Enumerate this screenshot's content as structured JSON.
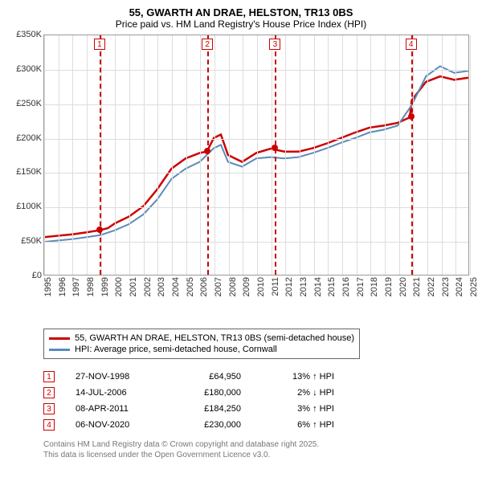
{
  "title": "55, GWARTH AN DRAE, HELSTON, TR13 0BS",
  "subtitle": "Price paid vs. HM Land Registry's House Price Index (HPI)",
  "chart": {
    "type": "line",
    "ylim": [
      0,
      350000
    ],
    "ytick_step": 50000,
    "xlim": [
      1995,
      2025
    ],
    "background_color": "#ffffff",
    "grid_color": "#dddddd",
    "border_color": "#999999",
    "y_labels": [
      "£0",
      "£50K",
      "£100K",
      "£150K",
      "£200K",
      "£250K",
      "£300K",
      "£350K"
    ],
    "x_labels": [
      "1995",
      "1996",
      "1997",
      "1998",
      "1999",
      "2000",
      "2001",
      "2002",
      "2003",
      "2004",
      "2005",
      "2006",
      "2007",
      "2008",
      "2009",
      "2010",
      "2011",
      "2012",
      "2013",
      "2014",
      "2015",
      "2016",
      "2017",
      "2018",
      "2019",
      "2020",
      "2021",
      "2022",
      "2023",
      "2024",
      "2025"
    ],
    "series": [
      {
        "name": "55, GWARTH AN DRAE, HELSTON, TR13 0BS (semi-detached house)",
        "color": "#cc0000",
        "width": 2.5,
        "points": [
          [
            1995,
            55000
          ],
          [
            1996,
            57000
          ],
          [
            1997,
            59000
          ],
          [
            1998,
            62000
          ],
          [
            1998.9,
            64950
          ],
          [
            1999.5,
            68000
          ],
          [
            2000,
            75000
          ],
          [
            2001,
            85000
          ],
          [
            2002,
            100000
          ],
          [
            2003,
            125000
          ],
          [
            2004,
            155000
          ],
          [
            2005,
            170000
          ],
          [
            2006,
            178000
          ],
          [
            2006.5,
            180000
          ],
          [
            2007,
            200000
          ],
          [
            2007.5,
            205000
          ],
          [
            2008,
            175000
          ],
          [
            2009,
            165000
          ],
          [
            2010,
            178000
          ],
          [
            2011,
            184250
          ],
          [
            2012,
            180000
          ],
          [
            2013,
            180000
          ],
          [
            2014,
            185000
          ],
          [
            2015,
            192000
          ],
          [
            2016,
            200000
          ],
          [
            2017,
            208000
          ],
          [
            2018,
            215000
          ],
          [
            2019,
            218000
          ],
          [
            2020,
            222000
          ],
          [
            2020.85,
            230000
          ],
          [
            2021,
            255000
          ],
          [
            2022,
            282000
          ],
          [
            2023,
            290000
          ],
          [
            2024,
            285000
          ],
          [
            2025,
            288000
          ]
        ]
      },
      {
        "name": "HPI: Average price, semi-detached house, Cornwall",
        "color": "#5b8bb8",
        "width": 2,
        "points": [
          [
            1995,
            48000
          ],
          [
            1996,
            50000
          ],
          [
            1997,
            52000
          ],
          [
            1998,
            55000
          ],
          [
            1999,
            58000
          ],
          [
            2000,
            65000
          ],
          [
            2001,
            74000
          ],
          [
            2002,
            88000
          ],
          [
            2003,
            110000
          ],
          [
            2004,
            140000
          ],
          [
            2005,
            155000
          ],
          [
            2006,
            165000
          ],
          [
            2007,
            185000
          ],
          [
            2007.5,
            190000
          ],
          [
            2008,
            165000
          ],
          [
            2009,
            158000
          ],
          [
            2010,
            170000
          ],
          [
            2011,
            172000
          ],
          [
            2012,
            170000
          ],
          [
            2013,
            172000
          ],
          [
            2014,
            178000
          ],
          [
            2015,
            185000
          ],
          [
            2016,
            193000
          ],
          [
            2017,
            200000
          ],
          [
            2018,
            208000
          ],
          [
            2019,
            212000
          ],
          [
            2020,
            218000
          ],
          [
            2021,
            248000
          ],
          [
            2022,
            290000
          ],
          [
            2023,
            305000
          ],
          [
            2024,
            295000
          ],
          [
            2025,
            298000
          ]
        ]
      }
    ],
    "markers": [
      {
        "year": 1998.9,
        "value": 64950,
        "color": "#cc0000"
      },
      {
        "year": 2006.5,
        "value": 180000,
        "color": "#cc0000"
      },
      {
        "year": 2011.27,
        "value": 184250,
        "color": "#cc0000"
      },
      {
        "year": 2020.85,
        "value": 230000,
        "color": "#cc0000"
      }
    ],
    "event_lines": [
      {
        "n": "1",
        "year": 1998.9
      },
      {
        "n": "2",
        "year": 2006.5
      },
      {
        "n": "3",
        "year": 2011.27
      },
      {
        "n": "4",
        "year": 2020.85
      }
    ]
  },
  "events": [
    {
      "n": "1",
      "date": "27-NOV-1998",
      "price": "£64,950",
      "pct": "13% ↑ HPI"
    },
    {
      "n": "2",
      "date": "14-JUL-2006",
      "price": "£180,000",
      "pct": "2% ↓ HPI"
    },
    {
      "n": "3",
      "date": "08-APR-2011",
      "price": "£184,250",
      "pct": "3% ↑ HPI"
    },
    {
      "n": "4",
      "date": "06-NOV-2020",
      "price": "£230,000",
      "pct": "6% ↑ HPI"
    }
  ],
  "footer1": "Contains HM Land Registry data © Crown copyright and database right 2025.",
  "footer2": "This data is licensed under the Open Government Licence v3.0."
}
